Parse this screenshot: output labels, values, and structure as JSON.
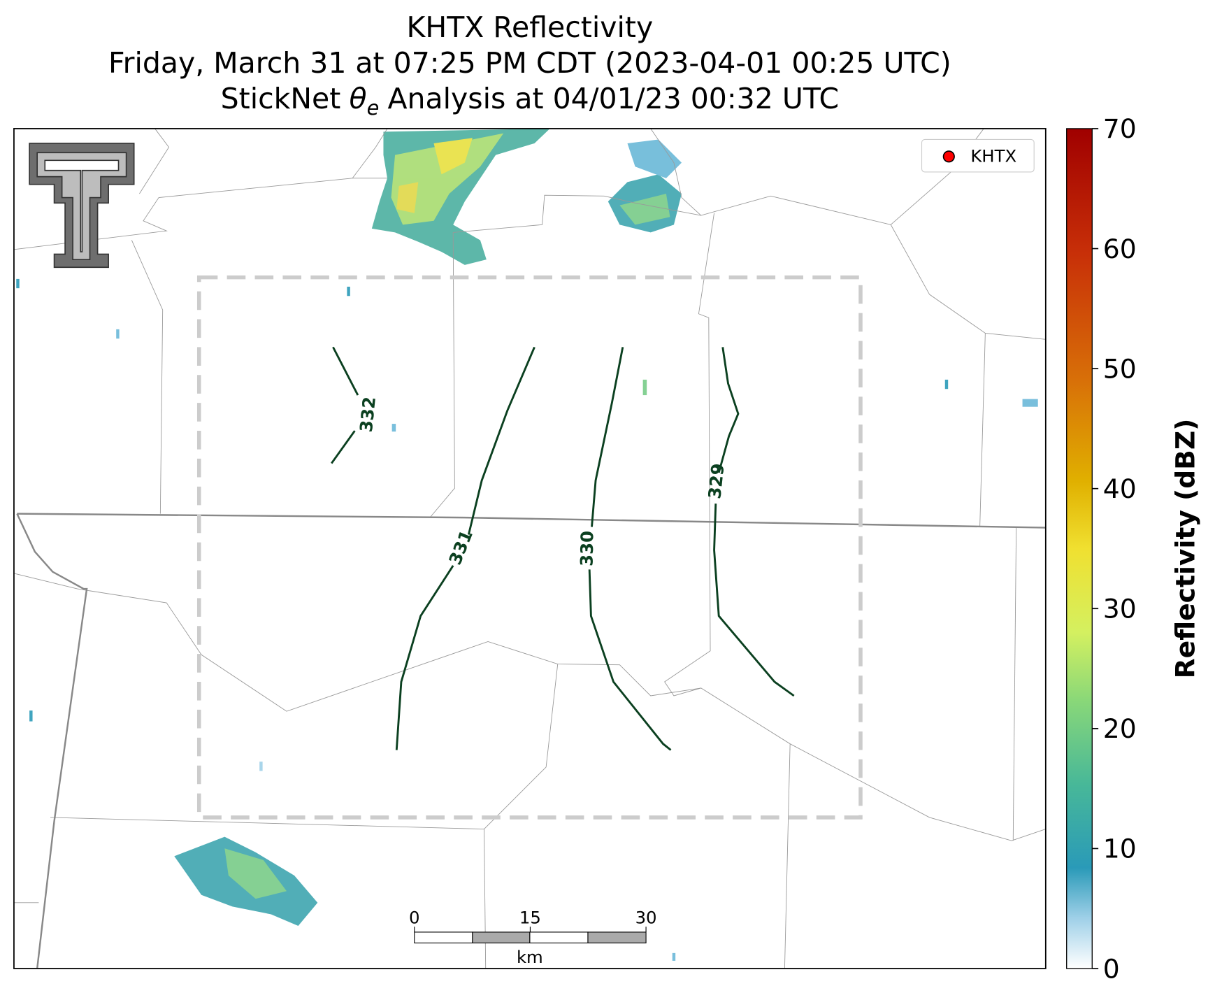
{
  "title": {
    "line1": "KHTX Reflectivity",
    "line2": "Friday, March 31 at 07:25 PM CDT (2023-04-01 00:25 UTC)",
    "line3_pre": "StickNet",
    "line3_symbol": "θ",
    "line3_sub": "e",
    "line3_post": "Analysis at 04/01/23 00:32 UTC"
  },
  "legend": {
    "label": "KHTX",
    "color": "#ff0000"
  },
  "colorbar": {
    "label": "Reflectivity (dBZ)",
    "lim": [
      0,
      70
    ],
    "ticks": [
      0,
      10,
      20,
      30,
      40,
      50,
      60,
      70
    ]
  },
  "scale_bar": {
    "ticks": [
      0,
      15,
      30
    ],
    "unit": "km"
  },
  "contours": [
    {
      "value": 332
    },
    {
      "value": 331
    },
    {
      "value": 330
    },
    {
      "value": 329
    }
  ]
}
